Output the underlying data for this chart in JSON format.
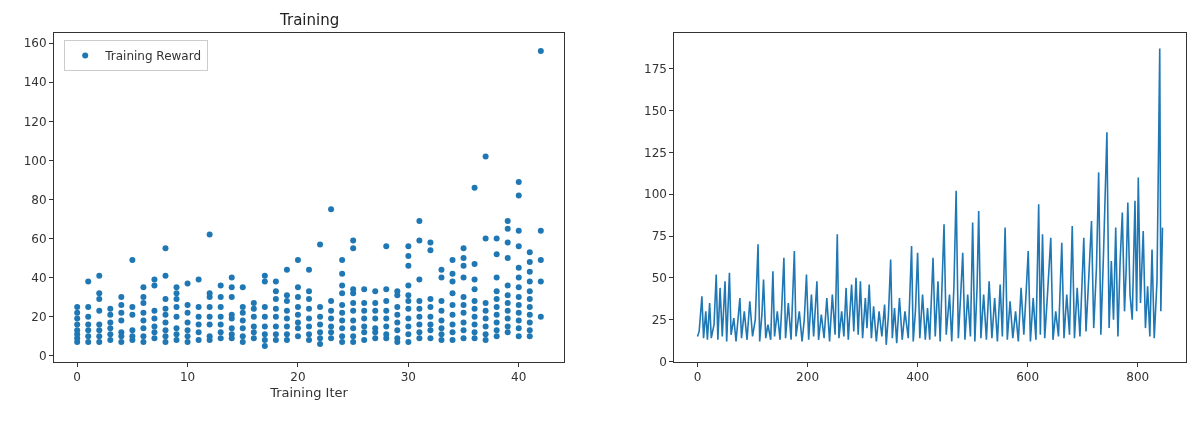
{
  "chart_data": [
    {
      "type": "scatter",
      "title": "Training",
      "xlabel": "Training Iter",
      "legend": "top left",
      "marker": "circle",
      "xlim": [
        -2.1,
        44.1
      ],
      "xticks": [
        0,
        10,
        20,
        30,
        40
      ],
      "ylim": [
        -3,
        165
      ],
      "yticks": [
        0,
        20,
        40,
        60,
        80,
        100,
        120,
        140,
        160
      ],
      "series": [
        {
          "name": "Training Reward",
          "color": "#1f77b4",
          "x": [
            0,
            0,
            0,
            0,
            0,
            0,
            0,
            0,
            1,
            1,
            1,
            1,
            1,
            1,
            1,
            2,
            2,
            2,
            2,
            2,
            2,
            2,
            2,
            3,
            3,
            3,
            3,
            3,
            3,
            4,
            4,
            4,
            4,
            4,
            4,
            4,
            5,
            5,
            5,
            5,
            5,
            5,
            6,
            6,
            6,
            6,
            6,
            6,
            6,
            6,
            7,
            7,
            7,
            7,
            7,
            7,
            7,
            8,
            8,
            8,
            8,
            8,
            8,
            8,
            8,
            8,
            9,
            9,
            9,
            9,
            9,
            9,
            9,
            9,
            10,
            10,
            10,
            10,
            10,
            10,
            10,
            11,
            11,
            11,
            11,
            11,
            11,
            12,
            12,
            12,
            12,
            12,
            12,
            12,
            12,
            13,
            13,
            13,
            13,
            13,
            13,
            13,
            14,
            14,
            14,
            14,
            14,
            14,
            14,
            14,
            15,
            15,
            15,
            15,
            15,
            15,
            15,
            16,
            16,
            16,
            16,
            16,
            16,
            17,
            17,
            17,
            17,
            17,
            17,
            17,
            17,
            18,
            18,
            18,
            18,
            18,
            18,
            18,
            18,
            19,
            19,
            19,
            19,
            19,
            19,
            19,
            19,
            20,
            20,
            20,
            20,
            20,
            20,
            20,
            20,
            21,
            21,
            21,
            21,
            21,
            21,
            21,
            21,
            22,
            22,
            22,
            22,
            22,
            22,
            22,
            23,
            23,
            23,
            23,
            23,
            23,
            23,
            24,
            24,
            24,
            24,
            24,
            24,
            24,
            24,
            24,
            24,
            25,
            25,
            25,
            25,
            25,
            25,
            25,
            25,
            25,
            25,
            26,
            26,
            26,
            26,
            26,
            26,
            26,
            27,
            27,
            27,
            27,
            27,
            27,
            27,
            28,
            28,
            28,
            28,
            28,
            28,
            28,
            28,
            29,
            29,
            29,
            29,
            29,
            29,
            29,
            29,
            30,
            30,
            30,
            30,
            30,
            30,
            30,
            30,
            30,
            30,
            30,
            31,
            31,
            31,
            31,
            31,
            31,
            31,
            31,
            31,
            32,
            32,
            32,
            32,
            32,
            32,
            32,
            32,
            33,
            33,
            33,
            33,
            33,
            33,
            33,
            33,
            34,
            34,
            34,
            34,
            34,
            34,
            34,
            34,
            34,
            35,
            35,
            35,
            35,
            35,
            35,
            35,
            35,
            35,
            35,
            36,
            36,
            36,
            36,
            36,
            36,
            36,
            36,
            36,
            36,
            37,
            37,
            37,
            37,
            37,
            37,
            37,
            37,
            38,
            38,
            38,
            38,
            38,
            38,
            38,
            38,
            38,
            38,
            39,
            39,
            39,
            39,
            39,
            39,
            39,
            39,
            39,
            39,
            39,
            40,
            40,
            40,
            40,
            40,
            40,
            40,
            40,
            40,
            40,
            40,
            40,
            40,
            41,
            41,
            41,
            41,
            41,
            41,
            41,
            41,
            41,
            41,
            41,
            42,
            42,
            42,
            42,
            42
          ],
          "values": [
            7,
            9,
            11,
            13,
            16,
            19,
            22,
            25,
            7,
            10,
            13,
            16,
            20,
            25,
            38,
            7,
            10,
            13,
            16,
            23,
            29,
            32,
            41,
            8,
            11,
            14,
            17,
            21,
            24,
            7,
            10,
            12,
            18,
            22,
            26,
            30,
            8,
            10,
            13,
            21,
            25,
            49,
            7,
            10,
            14,
            18,
            22,
            27,
            30,
            35,
            9,
            12,
            15,
            19,
            23,
            36,
            39,
            7,
            10,
            13,
            17,
            21,
            24,
            29,
            41,
            55,
            8,
            11,
            14,
            20,
            25,
            29,
            32,
            35,
            7,
            10,
            13,
            17,
            22,
            26,
            37,
            8,
            12,
            16,
            20,
            25,
            39,
            8,
            10,
            16,
            20,
            25,
            30,
            32,
            62,
            9,
            12,
            16,
            20,
            25,
            30,
            36,
            9,
            11,
            14,
            19,
            21,
            30,
            35,
            40,
            7,
            10,
            14,
            18,
            22,
            25,
            35,
            9,
            12,
            15,
            20,
            24,
            27,
            5,
            8,
            11,
            15,
            20,
            25,
            38,
            41,
            8,
            11,
            15,
            20,
            24,
            29,
            33,
            38,
            8,
            11,
            15,
            19,
            23,
            28,
            31,
            44,
            10,
            14,
            17,
            21,
            25,
            30,
            35,
            49,
            8,
            11,
            15,
            19,
            24,
            29,
            33,
            44,
            6,
            9,
            12,
            16,
            20,
            25,
            57,
            9,
            12,
            15,
            19,
            23,
            28,
            75,
            7,
            10,
            14,
            18,
            22,
            26,
            32,
            36,
            42,
            49,
            7,
            10,
            14,
            18,
            23,
            27,
            32,
            34,
            55,
            59,
            8,
            12,
            15,
            19,
            23,
            27,
            34,
            9,
            12,
            14,
            19,
            23,
            27,
            33,
            9,
            11,
            15,
            19,
            23,
            28,
            34,
            56,
            7,
            9,
            13,
            17,
            21,
            25,
            31,
            33,
            7,
            11,
            15,
            19,
            24,
            28,
            31,
            36,
            46,
            51,
            56,
            9,
            12,
            16,
            20,
            24,
            28,
            39,
            59,
            69,
            9,
            13,
            16,
            20,
            25,
            29,
            54,
            58,
            8,
            11,
            14,
            18,
            23,
            28,
            40,
            44,
            8,
            12,
            16,
            21,
            26,
            32,
            38,
            42,
            49,
            9,
            13,
            17,
            22,
            26,
            30,
            40,
            46,
            50,
            55,
            9,
            12,
            16,
            20,
            24,
            28,
            34,
            39,
            47,
            86,
            8,
            11,
            15,
            19,
            23,
            27,
            60,
            102,
            10,
            13,
            17,
            21,
            25,
            29,
            33,
            40,
            52,
            60,
            12,
            15,
            19,
            23,
            27,
            31,
            36,
            50,
            58,
            65,
            69,
            10,
            14,
            18,
            22,
            26,
            30,
            35,
            40,
            45,
            56,
            64,
            82,
            89,
            10,
            13,
            17,
            21,
            25,
            29,
            33,
            38,
            43,
            48,
            53,
            20,
            38,
            49,
            64,
            156
          ]
        }
      ]
    },
    {
      "type": "line",
      "legend": false,
      "marker": "none",
      "line_style": "solid",
      "xlim": [
        -42,
        887
      ],
      "xticks": [
        0,
        200,
        400,
        600,
        800
      ],
      "ylim": [
        0,
        196
      ],
      "yticks": [
        0,
        25,
        50,
        75,
        100,
        125,
        150,
        175
      ],
      "series": [
        {
          "color": "#1f77b4",
          "x": [
            0,
            3,
            8,
            11,
            15,
            18,
            22,
            25,
            30,
            34,
            37,
            41,
            45,
            50,
            53,
            58,
            61,
            66,
            70,
            77,
            80,
            85,
            90,
            95,
            100,
            105,
            110,
            113,
            117,
            120,
            124,
            128,
            133,
            137,
            140,
            145,
            150,
            153,
            157,
            160,
            165,
            170,
            176,
            179,
            185,
            190,
            194,
            198,
            202,
            207,
            211,
            217,
            220,
            225,
            230,
            235,
            240,
            245,
            250,
            254,
            257,
            262,
            266,
            270,
            274,
            280,
            284,
            288,
            292,
            296,
            300,
            305,
            308,
            312,
            316,
            320,
            325,
            330,
            335,
            340,
            343,
            347,
            351,
            354,
            358,
            362,
            367,
            372,
            377,
            383,
            389,
            392,
            396,
            400,
            404,
            409,
            414,
            418,
            422,
            428,
            432,
            437,
            441,
            448,
            452,
            458,
            462,
            466,
            470,
            474,
            478,
            482,
            486,
            491,
            496,
            500,
            504,
            508,
            511,
            515,
            520,
            525,
            530,
            535,
            540,
            545,
            550,
            554,
            559,
            563,
            568,
            573,
            578,
            583,
            588,
            593,
            597,
            601,
            605,
            610,
            615,
            620,
            623,
            627,
            631,
            636,
            642,
            646,
            651,
            656,
            662,
            666,
            671,
            676,
            681,
            685,
            690,
            695,
            702,
            706,
            711,
            716,
            720,
            725,
            729,
            733,
            738,
            744,
            748,
            752,
            756,
            760,
            764,
            768,
            772,
            776,
            779,
            782,
            786,
            790,
            795,
            798,
            801,
            805,
            810,
            814,
            818,
            822,
            826,
            830,
            835,
            840,
            842,
            845
          ],
          "values": [
            15,
            18,
            39,
            14,
            30,
            13,
            35,
            14,
            22,
            52,
            13,
            44,
            15,
            48,
            12,
            53,
            16,
            26,
            12,
            38,
            14,
            30,
            13,
            36,
            15,
            25,
            70,
            12,
            28,
            49,
            14,
            22,
            13,
            54,
            15,
            30,
            13,
            32,
            62,
            14,
            35,
            13,
            66,
            15,
            30,
            12,
            25,
            52,
            13,
            40,
            15,
            48,
            13,
            28,
            14,
            38,
            12,
            40,
            16,
            76,
            14,
            30,
            15,
            44,
            13,
            46,
            18,
            50,
            16,
            48,
            14,
            38,
            20,
            46,
            14,
            33,
            12,
            30,
            15,
            34,
            10,
            28,
            61,
            14,
            32,
            11,
            38,
            13,
            30,
            14,
            69,
            12,
            30,
            65,
            14,
            40,
            13,
            32,
            13,
            62,
            15,
            48,
            12,
            82,
            16,
            40,
            12,
            45,
            102,
            14,
            38,
            65,
            13,
            40,
            15,
            83,
            12,
            44,
            90,
            14,
            40,
            13,
            48,
            14,
            38,
            12,
            46,
            15,
            80,
            13,
            36,
            14,
            30,
            12,
            44,
            16,
            40,
            66,
            12,
            38,
            13,
            94,
            16,
            76,
            14,
            40,
            74,
            13,
            30,
            15,
            71,
            14,
            40,
            16,
            81,
            14,
            44,
            15,
            74,
            18,
            50,
            84,
            20,
            56,
            113,
            16,
            66,
            137,
            20,
            60,
            25,
            80,
            15,
            60,
            89,
            30,
            55,
            95,
            40,
            25,
            96,
            30,
            110,
            35,
            78,
            20,
            45,
            15,
            67,
            14,
            48,
            187,
            30,
            80
          ]
        }
      ]
    }
  ]
}
